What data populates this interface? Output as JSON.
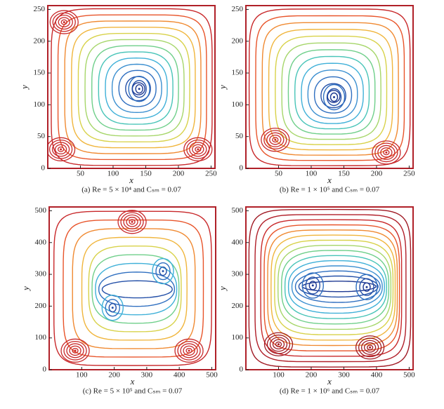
{
  "chart_data": [
    {
      "type": "contour",
      "caption": "(a) Re = 5 × 10⁴ and Cₛₘ = 0.07",
      "x_label": "x",
      "y_label": "y",
      "xlim": [
        0,
        256
      ],
      "ylim": [
        0,
        256
      ],
      "xticks": [
        50,
        100,
        150,
        200,
        250
      ],
      "yticks": [
        0,
        50,
        100,
        150,
        200,
        250
      ],
      "primary_vortices": {
        "x": [
          140
        ],
        "y": [
          125
        ]
      },
      "corner_vortices": {
        "x": [
          25,
          20,
          230
        ],
        "y": [
          230,
          30,
          30
        ]
      },
      "colors": [
        "#1f3a93",
        "#2450a8",
        "#2f6fc0",
        "#3b8fd0",
        "#3fb0d8",
        "#48c4b8",
        "#6fcf8a",
        "#a6d66a",
        "#d8d24a",
        "#f0b53c",
        "#f08a32",
        "#e8542a",
        "#c8282a"
      ]
    },
    {
      "type": "contour",
      "caption": "(b) Re = 1 × 10⁵ and Cₛₘ = 0.07",
      "x_label": "x",
      "y_label": "y",
      "xlim": [
        0,
        256
      ],
      "ylim": [
        0,
        256
      ],
      "xticks": [
        50,
        100,
        150,
        200,
        250
      ],
      "yticks": [
        0,
        50,
        100,
        150,
        200,
        250
      ],
      "primary_vortices": {
        "x": [
          135
        ],
        "y": [
          112
        ]
      },
      "corner_vortices": {
        "x": [
          45,
          215
        ],
        "y": [
          45,
          25
        ]
      },
      "colors": [
        "#1f3a93",
        "#2450a8",
        "#2f6fc0",
        "#3b8fd0",
        "#3fb0d8",
        "#48c4b8",
        "#6fcf8a",
        "#a6d66a",
        "#d8d24a",
        "#f0b53c",
        "#f08a32",
        "#e8542a",
        "#c8282a"
      ]
    },
    {
      "type": "contour",
      "caption": "(c) Re = 5 × 10⁵ and Cₛₘ = 0.07",
      "x_label": "x",
      "y_label": "y",
      "xlim": [
        0,
        512
      ],
      "ylim": [
        0,
        512
      ],
      "xticks": [
        100,
        200,
        300,
        400,
        500
      ],
      "yticks": [
        0,
        100,
        200,
        300,
        400,
        500
      ],
      "primary_vortices": {
        "x": [
          350,
          195
        ],
        "y": [
          310,
          195
        ]
      },
      "corner_vortices": {
        "x": [
          255,
          430,
          80
        ],
        "y": [
          465,
          60,
          60
        ]
      },
      "colors": [
        "#2450a8",
        "#2f6fc0",
        "#3fb0d8",
        "#6fcf8a",
        "#d8d24a",
        "#f0b53c",
        "#f08a32",
        "#e8542a",
        "#c8282a"
      ]
    },
    {
      "type": "contour",
      "caption": "(d) Re = 1 × 10⁶ and Cₛₘ = 0.07",
      "x_label": "x",
      "y_label": "y",
      "xlim": [
        0,
        512
      ],
      "ylim": [
        0,
        512
      ],
      "xticks": [
        100,
        200,
        300,
        400,
        500
      ],
      "yticks": [
        0,
        100,
        200,
        300,
        400,
        500
      ],
      "primary_vortices": {
        "x": [
          205,
          370
        ],
        "y": [
          265,
          260
        ]
      },
      "corner_vortices": {
        "x": [
          380,
          100
        ],
        "y": [
          70,
          80
        ]
      },
      "colors": [
        "#1f3a93",
        "#2450a8",
        "#2f6fc0",
        "#3b8fd0",
        "#3fb0d8",
        "#48c4b8",
        "#6fcf8a",
        "#a6d66a",
        "#d8d24a",
        "#f0b53c",
        "#f08a32",
        "#e8542a",
        "#c8282a",
        "#b01e28",
        "#a01a24"
      ]
    }
  ]
}
